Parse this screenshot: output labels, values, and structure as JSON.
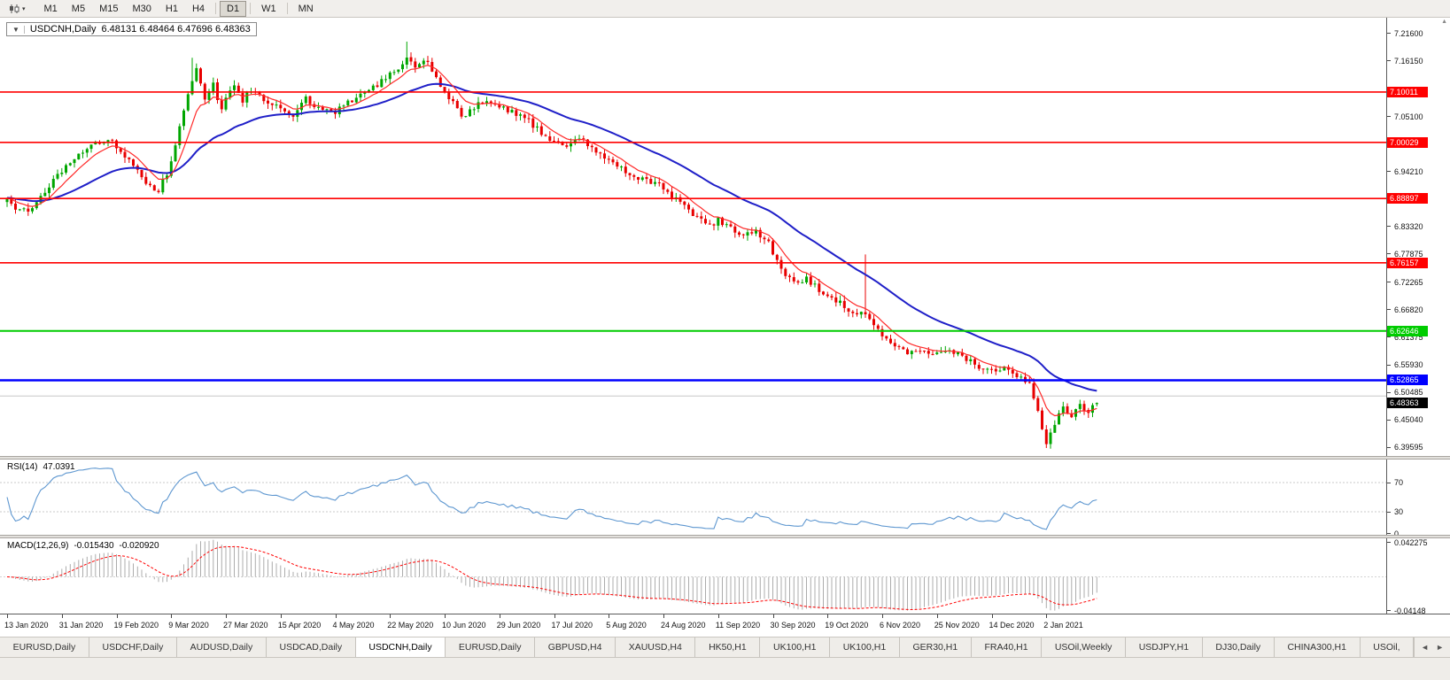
{
  "toolbar": {
    "timeframes": [
      "M1",
      "M5",
      "M15",
      "M30",
      "H1",
      "H4",
      "D1",
      "W1",
      "MN"
    ],
    "active_timeframe": "D1"
  },
  "chart_header": {
    "collapse_icon": "▼",
    "symbol_title": "USDCNH,Daily",
    "ohlc": "6.48131 6.48464 6.47696 6.48363"
  },
  "colors": {
    "up_candle": "#00A600",
    "down_candle": "#E80000",
    "ma_fast": "#FF2A2A",
    "ma_slow": "#1F1FC8",
    "rsi_line": "#5E97D0",
    "rsi_level": "#C8C8C8",
    "macd_hist": "#ACACAC",
    "macd_signal": "#FF0000",
    "current_price_bg": "#000000"
  },
  "price_axis": {
    "ticks": [
      "7.21600",
      "7.16150",
      "7.05100",
      "6.94210",
      "6.83320",
      "6.77875",
      "6.72265",
      "6.66820",
      "6.61375",
      "6.55930",
      "6.50485",
      "6.45040",
      "6.39595"
    ],
    "level_labels": [
      {
        "value": "7.10011",
        "bg": "#FF0000"
      },
      {
        "value": "7.00029",
        "bg": "#FF0000"
      },
      {
        "value": "6.88897",
        "bg": "#FF0000"
      },
      {
        "value": "6.76157",
        "bg": "#FF0000"
      },
      {
        "value": "6.62646",
        "bg": "#00CC00"
      },
      {
        "value": "6.52865",
        "bg": "#0000FF"
      }
    ],
    "current_price": {
      "value": "6.48363",
      "bg": "#000000"
    }
  },
  "rsi_panel": {
    "label": "RSI(14)",
    "value": "47.0391",
    "axis_ticks": [
      "70",
      "30",
      "0"
    ],
    "levels": [
      70,
      30
    ]
  },
  "macd_panel": {
    "label": "MACD(12,26,9)",
    "main_value": "-0.015430",
    "signal_value": "-0.020920",
    "axis_top": "0.042275",
    "axis_bottom": "-0.04148"
  },
  "time_axis": {
    "labels": [
      "13 Jan 2020",
      "31 Jan 2020",
      "19 Feb 2020",
      "9 Mar 2020",
      "27 Mar 2020",
      "15 Apr 2020",
      "4 May 2020",
      "22 May 2020",
      "10 Jun 2020",
      "29 Jun 2020",
      "17 Jul 2020",
      "5 Aug 2020",
      "24 Aug 2020",
      "11 Sep 2020",
      "30 Sep 2020",
      "19 Oct 2020",
      "6 Nov 2020",
      "25 Nov 2020",
      "14 Dec 2020",
      "2 Jan 2021"
    ]
  },
  "tab_bar": {
    "tabs": [
      "EURUSD,Daily",
      "USDCHF,Daily",
      "AUDUSD,Daily",
      "USDCAD,Daily",
      "USDCNH,Daily",
      "EURUSD,Daily",
      "GBPUSD,H4",
      "XAUUSD,H4",
      "HK50,H1",
      "UK100,H1",
      "UK100,H1",
      "GER30,H1",
      "FRA40,H1",
      "USOil,Weekly",
      "USDJPY,H1",
      "DJ30,Daily",
      "CHINA300,H1",
      "USOil,"
    ],
    "active_index": 4,
    "scroll_left_icon": "◄",
    "scroll_right_icon": "►",
    "scroll_up_icon": "▲"
  },
  "chart_data": {
    "type": "candlestick",
    "symbol": "USDCNH",
    "timeframe": "Daily",
    "last_candle": {
      "open": 6.48131,
      "high": 6.48464,
      "low": 6.47696,
      "close": 6.48363
    },
    "price_range_visible": [
      6.3785,
      7.2474
    ],
    "candle_count": 260,
    "candles_per_label": 13,
    "anchor_closes": [
      [
        0,
        6.885
      ],
      [
        3,
        6.862
      ],
      [
        6,
        6.872
      ],
      [
        10,
        6.915
      ],
      [
        13,
        6.945
      ],
      [
        17,
        6.978
      ],
      [
        21,
        6.998
      ],
      [
        24,
        7.006
      ],
      [
        26,
        6.994
      ],
      [
        29,
        6.964
      ],
      [
        33,
        6.924
      ],
      [
        36,
        6.903
      ],
      [
        39,
        6.958
      ],
      [
        41,
        7.03
      ],
      [
        43,
        7.1
      ],
      [
        45,
        7.148
      ],
      [
        47,
        7.09
      ],
      [
        49,
        7.118
      ],
      [
        51,
        7.062
      ],
      [
        52,
        7.088
      ],
      [
        54,
        7.115
      ],
      [
        56,
        7.083
      ],
      [
        58,
        7.104
      ],
      [
        61,
        7.086
      ],
      [
        65,
        7.07
      ],
      [
        68,
        7.054
      ],
      [
        71,
        7.088
      ],
      [
        74,
        7.069
      ],
      [
        78,
        7.062
      ],
      [
        81,
        7.078
      ],
      [
        84,
        7.092
      ],
      [
        87,
        7.108
      ],
      [
        90,
        7.127
      ],
      [
        93,
        7.149
      ],
      [
        95,
        7.172
      ],
      [
        97,
        7.151
      ],
      [
        99,
        7.167
      ],
      [
        101,
        7.141
      ],
      [
        104,
        7.104
      ],
      [
        106,
        7.076
      ],
      [
        108,
        7.05
      ],
      [
        110,
        7.066
      ],
      [
        113,
        7.082
      ],
      [
        117,
        7.072
      ],
      [
        120,
        7.062
      ],
      [
        123,
        7.051
      ],
      [
        126,
        7.027
      ],
      [
        130,
        7.0
      ],
      [
        133,
        6.996
      ],
      [
        136,
        7.011
      ],
      [
        139,
        6.989
      ],
      [
        143,
        6.962
      ],
      [
        146,
        6.947
      ],
      [
        149,
        6.934
      ],
      [
        152,
        6.926
      ],
      [
        156,
        6.911
      ],
      [
        160,
        6.877
      ],
      [
        164,
        6.851
      ],
      [
        167,
        6.835
      ],
      [
        169,
        6.846
      ],
      [
        172,
        6.829
      ],
      [
        175,
        6.816
      ],
      [
        178,
        6.825
      ],
      [
        181,
        6.799
      ],
      [
        183,
        6.768
      ],
      [
        185,
        6.741
      ],
      [
        187,
        6.721
      ],
      [
        190,
        6.731
      ],
      [
        193,
        6.706
      ],
      [
        195,
        6.696
      ],
      [
        198,
        6.681
      ],
      [
        201,
        6.659
      ],
      [
        204,
        6.663
      ],
      [
        206,
        6.637
      ],
      [
        208,
        6.621
      ],
      [
        211,
        6.601
      ],
      [
        214,
        6.577
      ],
      [
        217,
        6.591
      ],
      [
        221,
        6.581
      ],
      [
        224,
        6.591
      ],
      [
        227,
        6.575
      ],
      [
        230,
        6.561
      ],
      [
        234,
        6.546
      ],
      [
        237,
        6.551
      ],
      [
        240,
        6.536
      ],
      [
        243,
        6.521
      ],
      [
        245,
        6.467
      ],
      [
        247,
        6.407
      ],
      [
        249,
        6.446
      ],
      [
        251,
        6.471
      ],
      [
        253,
        6.456
      ],
      [
        255,
        6.476
      ],
      [
        257,
        6.464
      ],
      [
        259,
        6.4836
      ]
    ],
    "wick_overrides": [
      {
        "i": 44,
        "h": 7.168
      },
      {
        "i": 95,
        "h": 7.2
      },
      {
        "i": 204,
        "h": 6.778
      },
      {
        "i": 247,
        "l": 6.398
      }
    ],
    "horizontal_levels": [
      {
        "price": 7.10011,
        "color": "#FF0000",
        "width": 1.6
      },
      {
        "price": 7.00029,
        "color": "#FF0000",
        "width": 1.6
      },
      {
        "price": 6.88897,
        "color": "#FF0000",
        "width": 1.6
      },
      {
        "price": 6.76157,
        "color": "#FF0000",
        "width": 1.6
      },
      {
        "price": 6.62646,
        "color": "#00CC00",
        "width": 2
      },
      {
        "price": 6.52865,
        "color": "#0000FF",
        "width": 2.6
      },
      {
        "price": 6.4975,
        "color": "#C8C8C8",
        "width": 1
      }
    ],
    "moving_averages": [
      {
        "period": 8,
        "color": "#FF2A2A",
        "width": 1.2
      },
      {
        "period": 34,
        "color": "#1F1FC8",
        "width": 2
      }
    ],
    "indicators": [
      {
        "name": "RSI",
        "period": 14,
        "current": 47.0391,
        "levels": [
          70,
          30
        ],
        "range": [
          0,
          100
        ]
      },
      {
        "name": "MACD",
        "fast": 12,
        "slow": 26,
        "signal": 9,
        "current_main": -0.01543,
        "current_signal": -0.02092,
        "axis_max": 0.042275,
        "axis_min": -0.04148
      }
    ]
  }
}
